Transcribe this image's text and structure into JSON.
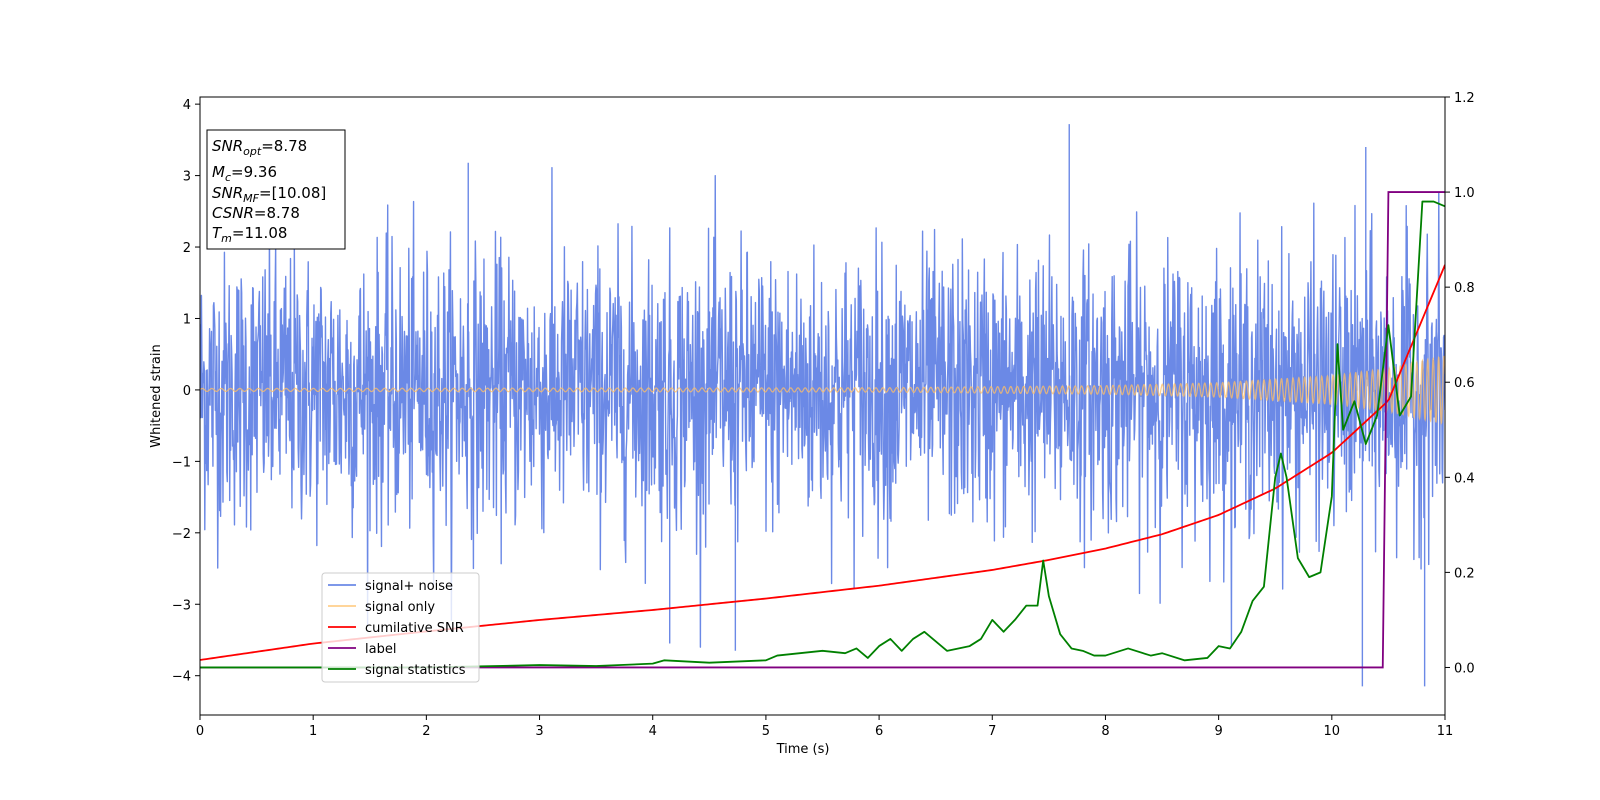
{
  "chart_data": {
    "type": "line",
    "xlabel": "Time (s)",
    "ylabel": "Whitened strain",
    "xlim": [
      0,
      11
    ],
    "ylim_left": [
      -4.55,
      4.1
    ],
    "ylim_right": [
      -0.1,
      1.2
    ],
    "xticks": [
      "0",
      "1",
      "2",
      "3",
      "4",
      "5",
      "6",
      "7",
      "8",
      "9",
      "10",
      "11"
    ],
    "yticks_left": [
      "−4",
      "−3",
      "−2",
      "−1",
      "0",
      "1",
      "2",
      "3",
      "4"
    ],
    "yticks_right": [
      "0.0",
      "0.2",
      "0.4",
      "0.6",
      "0.8",
      "1.0",
      "1.2"
    ],
    "grid": false,
    "legend_position": "lower-left",
    "colors": {
      "signal_noise": "#6b89e6",
      "signal_only": "#ffbf66",
      "cumulative_snr": "#ff0000",
      "label": "#800080",
      "signal_statistics": "#008000"
    },
    "legend": [
      {
        "label": "signal+ noise",
        "color": "#6b89e6"
      },
      {
        "label": "signal only",
        "color": "#ffbf66"
      },
      {
        "label": "cumilative SNR",
        "color": "#ff0000"
      },
      {
        "label": "label",
        "color": "#800080"
      },
      {
        "label": "signal statistics",
        "color": "#008000"
      }
    ],
    "series": [
      {
        "name": "signal+ noise",
        "axis": "left",
        "description_values": {
          "typical_range": [
            -2.0,
            2.0
          ],
          "max": 3.72,
          "min": -4.15
        }
      },
      {
        "name": "signal only",
        "axis": "left",
        "envelope": {
          "x": [
            0,
            6,
            8,
            9,
            10,
            10.5,
            11
          ],
          "amplitude": [
            0.02,
            0.03,
            0.06,
            0.1,
            0.2,
            0.3,
            0.48
          ]
        }
      },
      {
        "name": "cumilative SNR",
        "axis": "left",
        "x": [
          0,
          1,
          2,
          3,
          4,
          5,
          6,
          7,
          7.5,
          8,
          8.5,
          9,
          9.5,
          10,
          10.5,
          11
        ],
        "values": [
          -3.78,
          -3.55,
          -3.38,
          -3.22,
          -3.08,
          -2.92,
          -2.74,
          -2.52,
          -2.38,
          -2.22,
          -2.02,
          -1.75,
          -1.38,
          -0.88,
          -0.15,
          1.75
        ]
      },
      {
        "name": "label",
        "axis": "right",
        "x": [
          0,
          10.45,
          10.5,
          11
        ],
        "values": [
          0.0,
          0.0,
          1.0,
          1.0
        ]
      },
      {
        "name": "signal statistics",
        "axis": "right",
        "x": [
          0,
          1,
          2,
          3,
          3.5,
          4,
          4.1,
          4.5,
          5,
          5.1,
          5.5,
          5.7,
          5.8,
          5.9,
          6,
          6.1,
          6.2,
          6.3,
          6.4,
          6.5,
          6.6,
          6.8,
          6.9,
          7.0,
          7.1,
          7.2,
          7.3,
          7.4,
          7.45,
          7.5,
          7.6,
          7.7,
          7.8,
          7.9,
          8.0,
          8.2,
          8.4,
          8.5,
          8.7,
          8.9,
          9.0,
          9.1,
          9.2,
          9.3,
          9.4,
          9.5,
          9.55,
          9.6,
          9.7,
          9.8,
          9.9,
          10.0,
          10.05,
          10.1,
          10.2,
          10.3,
          10.4,
          10.5,
          10.6,
          10.7,
          10.8,
          10.9,
          11.0
        ],
        "values": [
          0.0,
          0.0,
          0.0,
          0.005,
          0.003,
          0.008,
          0.015,
          0.01,
          0.015,
          0.025,
          0.035,
          0.03,
          0.04,
          0.02,
          0.045,
          0.06,
          0.035,
          0.06,
          0.075,
          0.055,
          0.035,
          0.045,
          0.06,
          0.1,
          0.075,
          0.1,
          0.13,
          0.13,
          0.225,
          0.15,
          0.07,
          0.04,
          0.035,
          0.025,
          0.025,
          0.04,
          0.025,
          0.03,
          0.015,
          0.02,
          0.045,
          0.04,
          0.075,
          0.14,
          0.17,
          0.4,
          0.45,
          0.4,
          0.23,
          0.19,
          0.2,
          0.36,
          0.68,
          0.5,
          0.56,
          0.47,
          0.53,
          0.72,
          0.53,
          0.57,
          0.98,
          0.98,
          0.97
        ]
      }
    ]
  },
  "info_box": {
    "snr_opt_main": "SNR",
    "snr_opt_sub": "opt",
    "snr_opt_val": "=8.78",
    "mc_main": "M",
    "mc_sub": "c",
    "mc_val": "=9.36",
    "snr_mf_main": "SNR",
    "snr_mf_sub": "MF",
    "snr_mf_val": "=[10.08]",
    "csnr_main": "CSNR",
    "csnr_val": "=8.78",
    "tm_main": "T",
    "tm_sub": "m",
    "tm_val": "=11.08"
  }
}
